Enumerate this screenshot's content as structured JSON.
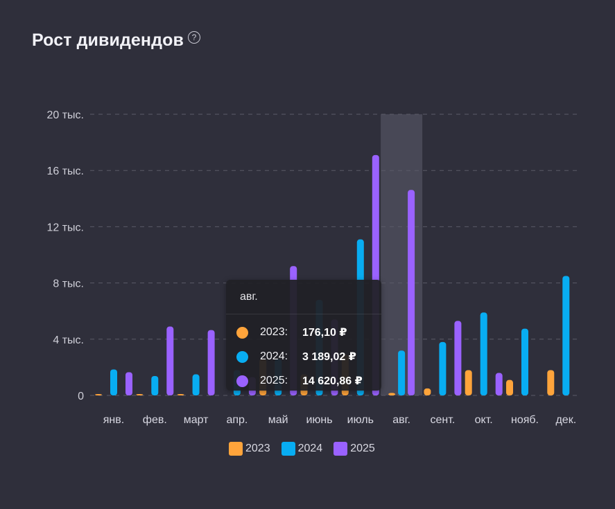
{
  "header": {
    "title": "Рост дивидендов",
    "help_icon": "?"
  },
  "colors": {
    "2023": "#ffa43b",
    "2024": "#08adf2",
    "2025": "#9a62ff",
    "grid": "#5b5b68",
    "highlight": "#4a4a57"
  },
  "chart_data": {
    "type": "bar",
    "categories": [
      "янв.",
      "фев.",
      "март",
      "апр.",
      "май",
      "июнь",
      "июль",
      "авг.",
      "сент.",
      "окт.",
      "нояб.",
      "дек."
    ],
    "ytick_labels": [
      "0",
      "4 тыс.",
      "8 тыс.",
      "12 тыс.",
      "16 тыс.",
      "20 тыс."
    ],
    "yticks": [
      0,
      4000,
      8000,
      12000,
      16000,
      20000
    ],
    "ylim": [
      0,
      20000
    ],
    "series": [
      {
        "name": "2023",
        "values": [
          60,
          20,
          40,
          0,
          2600,
          1500,
          2900,
          176.1,
          500,
          1800,
          1100,
          1800
        ]
      },
      {
        "name": "2024",
        "values": [
          1850,
          1380,
          1500,
          1800,
          2600,
          6800,
          11100,
          3189.02,
          3800,
          5900,
          4750,
          8500
        ]
      },
      {
        "name": "2025",
        "values": [
          1650,
          4900,
          4650,
          1300,
          9200,
          5400,
          17100,
          14620.86,
          5300,
          1600,
          0,
          0
        ]
      }
    ],
    "highlighted_category": "авг.",
    "grid": true,
    "legend_position": "bottom-center"
  },
  "tooltip": {
    "title": "авг.",
    "rows": [
      {
        "year": "2023:",
        "value": "176,10 ₽"
      },
      {
        "year": "2024:",
        "value": "3 189,02 ₽"
      },
      {
        "year": "2025:",
        "value": "14 620,86 ₽"
      }
    ]
  },
  "legend": [
    {
      "label": "2023"
    },
    {
      "label": "2024"
    },
    {
      "label": "2025"
    }
  ]
}
